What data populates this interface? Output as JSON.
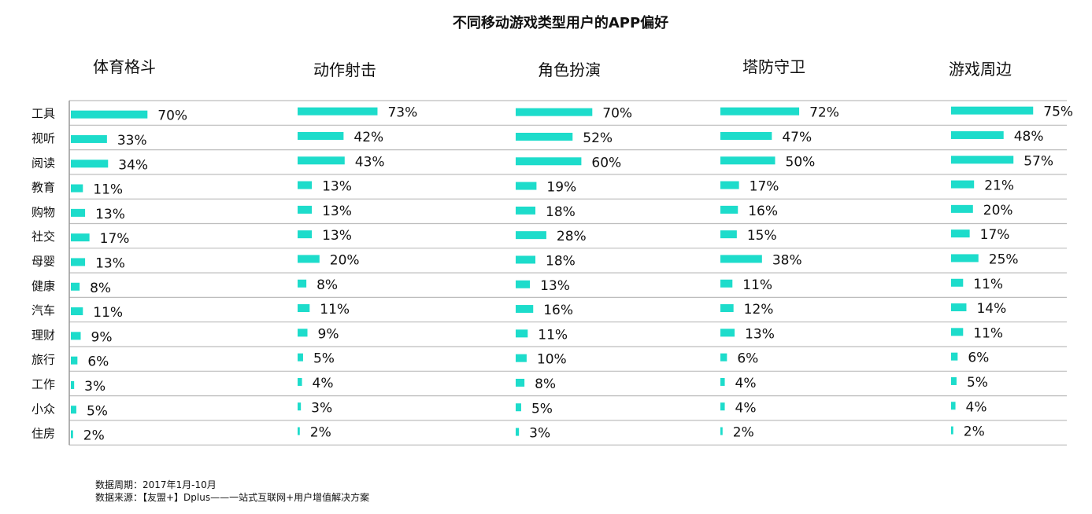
{
  "chart_data": {
    "type": "bar",
    "orientation": "horizontal",
    "title": "不同移动游戏类型用户的APP偏好",
    "categories": [
      "工具",
      "视听",
      "阅读",
      "教育",
      "购物",
      "社交",
      "母婴",
      "健康",
      "汽车",
      "理财",
      "旅行",
      "工作",
      "小众",
      "住房"
    ],
    "unit": "%",
    "grid": "horizontal row separators",
    "bar_color": "#1DDCCB",
    "series": [
      {
        "name": "体育格斗",
        "values": [
          70,
          33,
          34,
          11,
          13,
          17,
          13,
          8,
          11,
          9,
          6,
          3,
          5,
          2
        ]
      },
      {
        "name": "动作射击",
        "values": [
          73,
          42,
          43,
          13,
          13,
          13,
          20,
          8,
          11,
          9,
          5,
          4,
          3,
          2
        ]
      },
      {
        "name": "角色扮演",
        "values": [
          70,
          52,
          60,
          19,
          18,
          28,
          18,
          13,
          16,
          11,
          10,
          8,
          5,
          3
        ]
      },
      {
        "name": "塔防守卫",
        "values": [
          72,
          47,
          50,
          17,
          16,
          15,
          38,
          11,
          12,
          13,
          6,
          4,
          4,
          2
        ]
      },
      {
        "name": "游戏周边",
        "values": [
          75,
          48,
          57,
          21,
          20,
          17,
          25,
          11,
          14,
          11,
          6,
          5,
          4,
          2
        ]
      }
    ]
  },
  "footer": {
    "period": "数据周期：2017年1月-10月",
    "source": "数据来源：【友盟+】Dplus——一站式互联网+用户增值解决方案"
  }
}
